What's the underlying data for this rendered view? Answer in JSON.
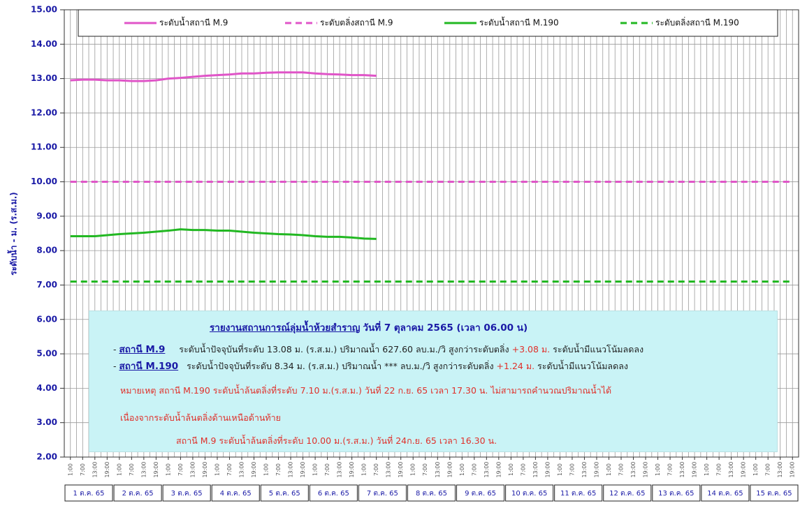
{
  "chart_data": {
    "type": "line",
    "ylabel": "ระดับน้ำ - ม. (ร.ส.ม.)",
    "categories": [
      "1:00",
      "7:00",
      "13:00",
      "19:00",
      "1:00",
      "7:00",
      "13:00",
      "19:00",
      "1:00",
      "7:00",
      "13:00",
      "19:00",
      "1:00",
      "7:00",
      "13:00",
      "19:00",
      "1:00",
      "7:00",
      "13:00",
      "19:00",
      "1:00",
      "7:00",
      "13:00",
      "19:00",
      "1:00",
      "7:00",
      "13:00",
      "19:00",
      "1:00",
      "7:00",
      "13:00",
      "19:00",
      "1:00",
      "7:00",
      "13:00",
      "19:00",
      "1:00",
      "7:00",
      "13:00",
      "19:00",
      "1:00",
      "7:00",
      "13:00",
      "19:00",
      "1:00",
      "7:00",
      "13:00",
      "19:00",
      "1:00",
      "7:00",
      "13:00",
      "19:00",
      "1:00",
      "7:00",
      "13:00",
      "19:00",
      "1:00",
      "7:00",
      "13:00",
      "19:00"
    ],
    "day_labels": [
      "1 ต.ค. 65",
      "2 ต.ค. 65",
      "3 ต.ค. 65",
      "4 ต.ค. 65",
      "5 ต.ค. 65",
      "6 ต.ค. 65",
      "7 ต.ค. 65",
      "8 ต.ค. 65",
      "9 ต.ค. 65",
      "10 ต.ค. 65",
      "11 ต.ค. 65",
      "12 ต.ค. 65",
      "13 ต.ค. 65",
      "14 ต.ค. 65",
      "15 ต.ค. 65"
    ],
    "ylim": [
      2,
      15
    ],
    "yticks": [
      {
        "value": 2,
        "label": "2.00"
      },
      {
        "value": 3,
        "label": "3.00"
      },
      {
        "value": 4,
        "label": "4.00"
      },
      {
        "value": 5,
        "label": "5.00"
      },
      {
        "value": 6,
        "label": "6.00"
      },
      {
        "value": 7,
        "label": "7.00"
      },
      {
        "value": 8,
        "label": "8.00"
      },
      {
        "value": 9,
        "label": "9.00"
      },
      {
        "value": 10,
        "label": "10.00"
      },
      {
        "value": 11,
        "label": "11.00"
      },
      {
        "value": 12,
        "label": "12.00"
      },
      {
        "value": 13,
        "label": "13.00"
      },
      {
        "value": 14,
        "label": "14.00"
      },
      {
        "value": 15,
        "label": "15.00"
      }
    ],
    "grid": true,
    "series": [
      {
        "name": "ระดับน้ำสถานี M.9",
        "color": "#e055c8",
        "dashed": false,
        "values": [
          12.95,
          12.97,
          12.97,
          12.95,
          12.95,
          12.93,
          12.93,
          12.95,
          13.0,
          13.02,
          13.05,
          13.08,
          13.1,
          13.12,
          13.15,
          13.15,
          13.17,
          13.18,
          13.18,
          13.18,
          13.15,
          13.13,
          13.12,
          13.1,
          13.1,
          13.08,
          null,
          null,
          null,
          null,
          null,
          null,
          null,
          null,
          null,
          null,
          null,
          null,
          null,
          null,
          null,
          null,
          null,
          null,
          null,
          null,
          null,
          null,
          null,
          null,
          null,
          null,
          null,
          null,
          null,
          null,
          null,
          null,
          null,
          null
        ]
      },
      {
        "name": "ระดับตลิ่งสถานี M.9",
        "color": "#e055c8",
        "dashed": true,
        "values": [
          10,
          10,
          10,
          10,
          10,
          10,
          10,
          10,
          10,
          10,
          10,
          10,
          10,
          10,
          10,
          10,
          10,
          10,
          10,
          10,
          10,
          10,
          10,
          10,
          10,
          10,
          10,
          10,
          10,
          10,
          10,
          10,
          10,
          10,
          10,
          10,
          10,
          10,
          10,
          10,
          10,
          10,
          10,
          10,
          10,
          10,
          10,
          10,
          10,
          10,
          10,
          10,
          10,
          10,
          10,
          10,
          10,
          10,
          10,
          10
        ]
      },
      {
        "name": "ระดับน้ำสถานี M.190",
        "color": "#22b822",
        "dashed": false,
        "values": [
          8.42,
          8.42,
          8.42,
          8.45,
          8.48,
          8.5,
          8.52,
          8.55,
          8.58,
          8.62,
          8.6,
          8.6,
          8.58,
          8.58,
          8.55,
          8.52,
          8.5,
          8.48,
          8.47,
          8.45,
          8.42,
          8.4,
          8.4,
          8.38,
          8.35,
          8.34,
          null,
          null,
          null,
          null,
          null,
          null,
          null,
          null,
          null,
          null,
          null,
          null,
          null,
          null,
          null,
          null,
          null,
          null,
          null,
          null,
          null,
          null,
          null,
          null,
          null,
          null,
          null,
          null,
          null,
          null,
          null,
          null,
          null,
          null
        ]
      },
      {
        "name": "ระดับตลิ่งสถานี M.190",
        "color": "#22b822",
        "dashed": true,
        "values": [
          7.1,
          7.1,
          7.1,
          7.1,
          7.1,
          7.1,
          7.1,
          7.1,
          7.1,
          7.1,
          7.1,
          7.1,
          7.1,
          7.1,
          7.1,
          7.1,
          7.1,
          7.1,
          7.1,
          7.1,
          7.1,
          7.1,
          7.1,
          7.1,
          7.1,
          7.1,
          7.1,
          7.1,
          7.1,
          7.1,
          7.1,
          7.1,
          7.1,
          7.1,
          7.1,
          7.1,
          7.1,
          7.1,
          7.1,
          7.1,
          7.1,
          7.1,
          7.1,
          7.1,
          7.1,
          7.1,
          7.1,
          7.1,
          7.1,
          7.1,
          7.1,
          7.1,
          7.1,
          7.1,
          7.1,
          7.1,
          7.1,
          7.1,
          7.1,
          7.1
        ]
      }
    ],
    "annotation": {
      "title": "รายงานสถานการณ์ลุ่มน้ำห้วยสำราญ",
      "title_date": "วันที่ 7 ตุลาคม 2565  (เวลา 06.00 น)",
      "station1": "สถานี M.9",
      "station1_text": "ระดับน้ำปัจจุบันที่ระดับ 13.08 ม. (ร.ส.ม.) ปริมาณน้ำ 627.60 ลบ.ม./วิ สูงกว่าระดับตลิ่ง",
      "station1_diff": "+3.08 ม.",
      "station1_trend": "ระดับน้ำมีแนวโน้มลดลง",
      "station2": "สถานี M.190",
      "station2_text": "ระดับน้ำปัจจุบันที่ระดับ 8.34 ม. (ร.ส.ม.) ปริมาณน้ำ  ***  ลบ.ม./วิ สูงกว่าระดับตลิ่ง",
      "station2_diff": "+1.24 ม.",
      "station2_trend": "ระดับน้ำมีแนวโน้มลดลง",
      "note1": "หมายเหตุ   สถานี M.190 ระดับน้ำล้นตลิ่งที่ระดับ 7.10 ม.(ร.ส.ม.) วันที่ 22 ก.ย. 65 เวลา 17.30 น. ไม่สามารถคำนวณปริมาณน้ำได้",
      "note2": "เนื่องจากระดับน้ำล้นตลิ่งด้านเหนือด้านท้าย",
      "note3": "สถานี M.9 ระดับน้ำล้นตลิ่งที่ระดับ 10.00 ม.(ร.ส.ม.) วันที่ 24ก.ย. 65 เวลา 16.30 น."
    }
  }
}
